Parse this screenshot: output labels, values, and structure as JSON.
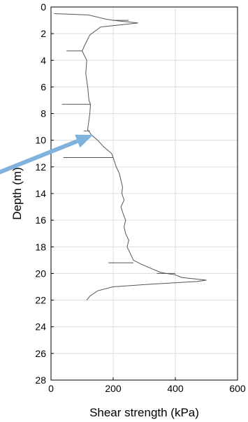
{
  "chart_data": {
    "type": "line",
    "xlabel": "Shear strength (kPa)",
    "ylabel": "Depth (m)",
    "xlim": [
      0,
      600
    ],
    "ylim": [
      0,
      28
    ],
    "y_reversed": true,
    "grid": true,
    "x_ticks": [
      0,
      200,
      400,
      600
    ],
    "y_ticks": [
      0,
      2,
      4,
      6,
      8,
      10,
      12,
      14,
      16,
      18,
      20,
      22,
      24,
      26,
      28
    ],
    "series": [
      {
        "color": "#555555",
        "points": [
          [
            10,
            0.5
          ],
          [
            120,
            0.6
          ],
          [
            175,
            0.9
          ],
          [
            200,
            1.0
          ],
          [
            240,
            1.1
          ],
          [
            280,
            1.2
          ],
          [
            160,
            1.5
          ],
          [
            125,
            2.1
          ],
          [
            110,
            2.8
          ],
          [
            100,
            3.3
          ],
          [
            115,
            4.0
          ],
          [
            112,
            5.0
          ],
          [
            118,
            6.0
          ],
          [
            122,
            7.0
          ],
          [
            127,
            7.3
          ],
          [
            125,
            8.0
          ],
          [
            122,
            8.5
          ],
          [
            118,
            9.2
          ],
          [
            130,
            9.6
          ],
          [
            150,
            10.0
          ],
          [
            170,
            10.5
          ],
          [
            195,
            11.0
          ],
          [
            200,
            11.3
          ],
          [
            210,
            12.0
          ],
          [
            220,
            12.5
          ],
          [
            225,
            13.0
          ],
          [
            230,
            13.5
          ],
          [
            228,
            14.0
          ],
          [
            235,
            14.5
          ],
          [
            225,
            15.0
          ],
          [
            232,
            15.5
          ],
          [
            240,
            16.0
          ],
          [
            235,
            16.5
          ],
          [
            240,
            17.0
          ],
          [
            250,
            17.5
          ],
          [
            245,
            18.0
          ],
          [
            255,
            18.5
          ],
          [
            265,
            19.0
          ],
          [
            290,
            19.3
          ],
          [
            310,
            19.5
          ],
          [
            330,
            19.7
          ],
          [
            350,
            19.9
          ],
          [
            370,
            20.0
          ],
          [
            400,
            20.1
          ],
          [
            420,
            20.3
          ],
          [
            500,
            20.5
          ],
          [
            470,
            20.6
          ],
          [
            320,
            20.8
          ],
          [
            200,
            21.0
          ],
          [
            150,
            21.3
          ],
          [
            125,
            21.7
          ],
          [
            115,
            22.0
          ]
        ]
      }
    ],
    "spikes": [
      {
        "depth": 1.0,
        "from": 200,
        "to": 250
      },
      {
        "depth": 3.3,
        "from": 50,
        "to": 100
      },
      {
        "depth": 7.3,
        "from": 35,
        "to": 127
      },
      {
        "depth": 9.3,
        "from": 105,
        "to": 125
      },
      {
        "depth": 11.3,
        "from": 40,
        "to": 200
      },
      {
        "depth": 19.2,
        "from": 185,
        "to": 265
      },
      {
        "depth": 20.0,
        "from": 340,
        "to": 400
      }
    ],
    "annotation": {
      "type": "arrow",
      "color": "#7fb2dd",
      "from": [
        -230,
        13.0
      ],
      "to": [
        135,
        9.6
      ]
    }
  }
}
